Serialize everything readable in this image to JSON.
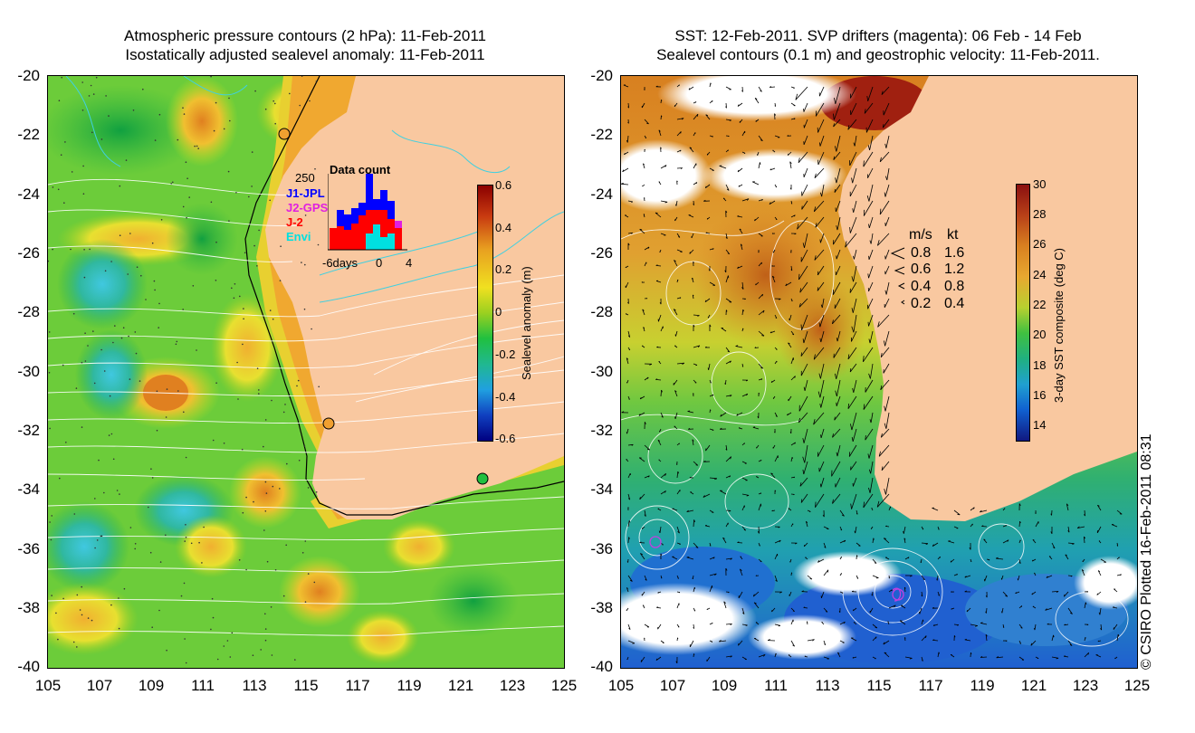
{
  "left_panel": {
    "title_line1": "Atmospheric pressure contours (2 hPa): 11-Feb-2011",
    "title_line2": "Isostatically adjusted sealevel anomaly: 11-Feb-2011",
    "y_ticks": [
      "-20",
      "-22",
      "-24",
      "-26",
      "-28",
      "-30",
      "-32",
      "-34",
      "-36",
      "-38",
      "-40"
    ],
    "x_ticks": [
      "105",
      "107",
      "109",
      "111",
      "113",
      "115",
      "117",
      "119",
      "121",
      "123",
      "125"
    ],
    "colorbar": {
      "label": "Sealevel anomaly (m)",
      "ticks": [
        "0.6",
        "0.4",
        "0.2",
        "0",
        "-0.2",
        "-0.4",
        "-0.6"
      ],
      "range": [
        -0.6,
        0.6
      ],
      "colors": [
        "#8b0000",
        "#c83a10",
        "#e8a020",
        "#f0e020",
        "#9ad020",
        "#20c040",
        "#20b890",
        "#20a0e0",
        "#1040c0",
        "#000080"
      ]
    },
    "inset": {
      "title": "Data count",
      "ymax_label": "250",
      "legend": [
        {
          "label": "J1-JPL",
          "color": "#0000ff"
        },
        {
          "label": "J2-GPS",
          "color": "#e020e0"
        },
        {
          "label": "J-2",
          "color": "#ff0000"
        },
        {
          "label": "Envi",
          "color": "#00e0e0"
        }
      ],
      "x_labels": [
        "-6days",
        "0",
        "4"
      ]
    }
  },
  "right_panel": {
    "title_line1": "SST: 12-Feb-2011. SVP drifters (magenta): 06 Feb - 14 Feb",
    "title_line2": "Sealevel contours (0.1 m) and geostrophic velocity: 11-Feb-2011.",
    "y_ticks": [
      "-20",
      "-22",
      "-24",
      "-26",
      "-28",
      "-30",
      "-32",
      "-34",
      "-36",
      "-38",
      "-40"
    ],
    "x_ticks": [
      "105",
      "107",
      "109",
      "111",
      "113",
      "115",
      "117",
      "119",
      "121",
      "123",
      "125"
    ],
    "colorbar": {
      "label": "3-day SST composite (deg C)",
      "ticks": [
        "30",
        "28",
        "26",
        "24",
        "22",
        "20",
        "18",
        "16",
        "14"
      ],
      "range": [
        13,
        30
      ]
    },
    "velocity_legend": {
      "header_ms": "m/s",
      "header_kt": "kt",
      "rows": [
        {
          "ms": "0.8",
          "kt": "1.6"
        },
        {
          "ms": "0.6",
          "kt": "1.2"
        },
        {
          "ms": "0.4",
          "kt": "0.8"
        },
        {
          "ms": "0.2",
          "kt": "0.4"
        }
      ]
    }
  },
  "copyright": "© CSIRO Plotted 16-Feb-2011 08:31",
  "colors": {
    "land": "#f9c8a0",
    "sealevel_bg": "#40c040",
    "sst_warm": "#d87820",
    "sst_cool": "#20a0a0"
  }
}
